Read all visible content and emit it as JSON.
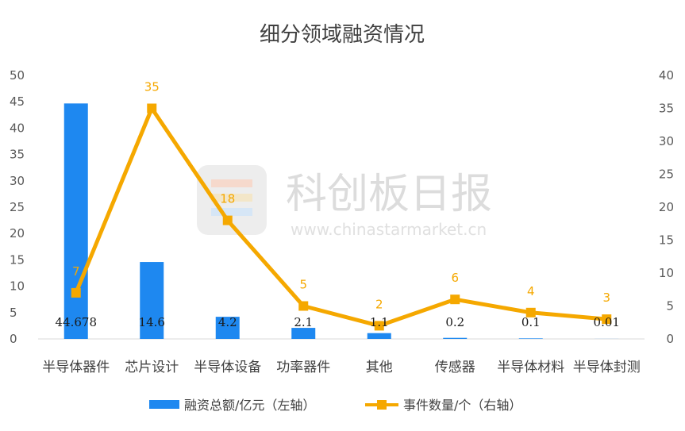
{
  "chart_data": {
    "type": "bar+line",
    "title": "细分领域融资情况",
    "categories": [
      "半导体器件",
      "芯片设计",
      "半导体设备",
      "功率器件",
      "其他",
      "传感器",
      "半导体材料",
      "半导体封测"
    ],
    "series": [
      {
        "name": "融资总额/亿元（左轴）",
        "type": "bar",
        "axis": "left",
        "values": [
          44.678,
          14.6,
          4.2,
          2.1,
          1.1,
          0.2,
          0.1,
          0.01
        ],
        "labels": [
          "44.678",
          "14.6",
          "4.2",
          "2.1",
          "1.1",
          "0.2",
          "0.1",
          "0.01"
        ],
        "color": "#1e88f0"
      },
      {
        "name": "事件数量/个（右轴）",
        "type": "line",
        "axis": "right",
        "values": [
          7,
          35,
          18,
          5,
          2,
          6,
          4,
          3
        ],
        "labels": [
          "7",
          "35",
          "18",
          "5",
          "2",
          "6",
          "4",
          "3"
        ],
        "color": "#f5a800"
      }
    ],
    "y_left": {
      "ylim": [
        0,
        50
      ],
      "ticks": [
        "0",
        "5",
        "10",
        "15",
        "20",
        "25",
        "30",
        "35",
        "40",
        "45",
        "50"
      ]
    },
    "y_right": {
      "ylim": [
        0,
        40
      ],
      "ticks": [
        "0",
        "5",
        "10",
        "15",
        "20",
        "25",
        "30",
        "35",
        "40"
      ]
    },
    "grid": false,
    "legend": "bottom"
  },
  "watermark": {
    "brand": "科创板日报",
    "url": "www.chinastarmarket.cn"
  }
}
